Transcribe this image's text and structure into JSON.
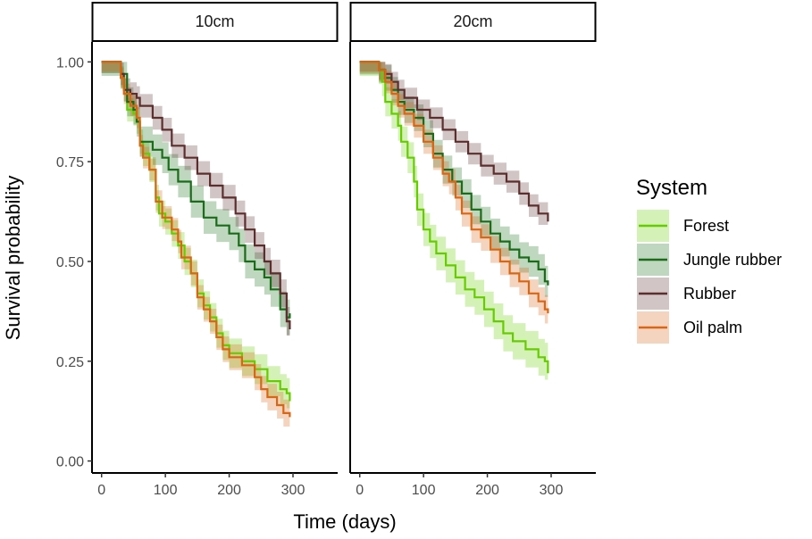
{
  "chart_data": {
    "type": "line",
    "subtype": "kaplan-meier survival curves with confidence bands",
    "xlabel": "Time (days)",
    "ylabel": "Survival probability",
    "xlim": [
      -15,
      370
    ],
    "ylim": [
      -0.03,
      1.05
    ],
    "x_ticks": [
      0,
      100,
      200,
      300
    ],
    "x_tick_labels": [
      "0",
      "100",
      "200",
      "300"
    ],
    "y_ticks": [
      0.0,
      0.25,
      0.5,
      0.75,
      1.0
    ],
    "y_tick_labels": [
      "0.00",
      "0.25",
      "0.50",
      "0.75",
      "1.00"
    ],
    "grid": false,
    "legend_position": "right",
    "legend": {
      "title": "System",
      "entries": [
        "Forest",
        "Jungle rubber",
        "Rubber",
        "Oil palm"
      ]
    },
    "colors": {
      "Forest": "#66cc00",
      "Jungle rubber": "#1a6b1a",
      "Rubber": "#5c2e2e",
      "Oil palm": "#d96614"
    },
    "panels": [
      {
        "strip": "10cm",
        "series": [
          {
            "name": "Forest",
            "points": [
              [
                0,
                1.0
              ],
              [
                25,
                1.0
              ],
              [
                30,
                0.96
              ],
              [
                35,
                0.93
              ],
              [
                40,
                0.88
              ],
              [
                50,
                0.87
              ],
              [
                55,
                0.85
              ],
              [
                60,
                0.8
              ],
              [
                65,
                0.77
              ],
              [
                75,
                0.73
              ],
              [
                85,
                0.66
              ],
              [
                90,
                0.62
              ],
              [
                100,
                0.6
              ],
              [
                110,
                0.57
              ],
              [
                120,
                0.54
              ],
              [
                130,
                0.5
              ],
              [
                140,
                0.47
              ],
              [
                150,
                0.42
              ],
              [
                160,
                0.39
              ],
              [
                170,
                0.36
              ],
              [
                180,
                0.32
              ],
              [
                190,
                0.29
              ],
              [
                200,
                0.27
              ],
              [
                220,
                0.25
              ],
              [
                240,
                0.23
              ],
              [
                260,
                0.2
              ],
              [
                280,
                0.18
              ],
              [
                290,
                0.17
              ],
              [
                295,
                0.15
              ]
            ],
            "band": 0.04
          },
          {
            "name": "Jungle rubber",
            "points": [
              [
                0,
                1.0
              ],
              [
                25,
                1.0
              ],
              [
                30,
                0.97
              ],
              [
                40,
                0.9
              ],
              [
                50,
                0.88
              ],
              [
                55,
                0.85
              ],
              [
                60,
                0.8
              ],
              [
                80,
                0.78
              ],
              [
                95,
                0.76
              ],
              [
                105,
                0.73
              ],
              [
                120,
                0.7
              ],
              [
                140,
                0.65
              ],
              [
                160,
                0.61
              ],
              [
                180,
                0.59
              ],
              [
                200,
                0.57
              ],
              [
                215,
                0.54
              ],
              [
                225,
                0.5
              ],
              [
                240,
                0.48
              ],
              [
                255,
                0.46
              ],
              [
                265,
                0.43
              ],
              [
                280,
                0.38
              ],
              [
                290,
                0.36
              ],
              [
                295,
                0.37
              ]
            ],
            "band": 0.05
          },
          {
            "name": "Rubber",
            "points": [
              [
                0,
                1.0
              ],
              [
                25,
                1.0
              ],
              [
                30,
                0.97
              ],
              [
                35,
                0.93
              ],
              [
                45,
                0.92
              ],
              [
                55,
                0.91
              ],
              [
                60,
                0.89
              ],
              [
                80,
                0.86
              ],
              [
                95,
                0.83
              ],
              [
                110,
                0.79
              ],
              [
                130,
                0.76
              ],
              [
                150,
                0.72
              ],
              [
                170,
                0.69
              ],
              [
                190,
                0.66
              ],
              [
                210,
                0.62
              ],
              [
                225,
                0.58
              ],
              [
                240,
                0.54
              ],
              [
                255,
                0.5
              ],
              [
                265,
                0.47
              ],
              [
                280,
                0.42
              ],
              [
                290,
                0.35
              ],
              [
                295,
                0.33
              ]
            ],
            "band": 0.04
          },
          {
            "name": "Oil palm",
            "points": [
              [
                0,
                1.0
              ],
              [
                25,
                1.0
              ],
              [
                30,
                0.96
              ],
              [
                35,
                0.92
              ],
              [
                45,
                0.89
              ],
              [
                55,
                0.86
              ],
              [
                60,
                0.79
              ],
              [
                65,
                0.76
              ],
              [
                75,
                0.73
              ],
              [
                85,
                0.65
              ],
              [
                95,
                0.61
              ],
              [
                110,
                0.58
              ],
              [
                120,
                0.55
              ],
              [
                125,
                0.51
              ],
              [
                140,
                0.47
              ],
              [
                150,
                0.41
              ],
              [
                160,
                0.38
              ],
              [
                170,
                0.35
              ],
              [
                180,
                0.31
              ],
              [
                190,
                0.28
              ],
              [
                200,
                0.26
              ],
              [
                220,
                0.24
              ],
              [
                240,
                0.21
              ],
              [
                250,
                0.18
              ],
              [
                260,
                0.16
              ],
              [
                275,
                0.14
              ],
              [
                285,
                0.12
              ],
              [
                295,
                0.11
              ]
            ],
            "band": 0.035
          }
        ]
      },
      {
        "strip": "20cm",
        "series": [
          {
            "name": "Forest",
            "points": [
              [
                0,
                1.0
              ],
              [
                25,
                1.0
              ],
              [
                30,
                0.98
              ],
              [
                35,
                0.95
              ],
              [
                40,
                0.9
              ],
              [
                50,
                0.87
              ],
              [
                60,
                0.84
              ],
              [
                65,
                0.8
              ],
              [
                75,
                0.76
              ],
              [
                85,
                0.7
              ],
              [
                90,
                0.63
              ],
              [
                100,
                0.58
              ],
              [
                110,
                0.55
              ],
              [
                120,
                0.52
              ],
              [
                135,
                0.49
              ],
              [
                150,
                0.46
              ],
              [
                165,
                0.43
              ],
              [
                180,
                0.41
              ],
              [
                195,
                0.38
              ],
              [
                210,
                0.35
              ],
              [
                225,
                0.32
              ],
              [
                240,
                0.3
              ],
              [
                260,
                0.28
              ],
              [
                280,
                0.26
              ],
              [
                290,
                0.25
              ],
              [
                295,
                0.22
              ]
            ],
            "band": 0.05
          },
          {
            "name": "Jungle rubber",
            "points": [
              [
                0,
                1.0
              ],
              [
                25,
                1.0
              ],
              [
                30,
                0.98
              ],
              [
                40,
                0.96
              ],
              [
                50,
                0.93
              ],
              [
                60,
                0.9
              ],
              [
                70,
                0.88
              ],
              [
                85,
                0.86
              ],
              [
                100,
                0.82
              ],
              [
                115,
                0.77
              ],
              [
                130,
                0.73
              ],
              [
                145,
                0.7
              ],
              [
                160,
                0.67
              ],
              [
                175,
                0.63
              ],
              [
                190,
                0.6
              ],
              [
                205,
                0.57
              ],
              [
                220,
                0.55
              ],
              [
                235,
                0.53
              ],
              [
                250,
                0.51
              ],
              [
                265,
                0.5
              ],
              [
                280,
                0.48
              ],
              [
                290,
                0.45
              ],
              [
                295,
                0.44
              ]
            ],
            "band": 0.045
          },
          {
            "name": "Rubber",
            "points": [
              [
                0,
                1.0
              ],
              [
                25,
                1.0
              ],
              [
                30,
                0.98
              ],
              [
                40,
                0.97
              ],
              [
                50,
                0.95
              ],
              [
                60,
                0.93
              ],
              [
                70,
                0.91
              ],
              [
                90,
                0.88
              ],
              [
                110,
                0.86
              ],
              [
                130,
                0.83
              ],
              [
                150,
                0.8
              ],
              [
                170,
                0.77
              ],
              [
                190,
                0.74
              ],
              [
                210,
                0.72
              ],
              [
                230,
                0.7
              ],
              [
                250,
                0.67
              ],
              [
                265,
                0.64
              ],
              [
                280,
                0.62
              ],
              [
                295,
                0.6
              ]
            ],
            "band": 0.035
          },
          {
            "name": "Oil palm",
            "points": [
              [
                0,
                1.0
              ],
              [
                25,
                1.0
              ],
              [
                30,
                0.98
              ],
              [
                40,
                0.95
              ],
              [
                50,
                0.92
              ],
              [
                60,
                0.89
              ],
              [
                70,
                0.87
              ],
              [
                85,
                0.84
              ],
              [
                100,
                0.8
              ],
              [
                115,
                0.76
              ],
              [
                130,
                0.72
              ],
              [
                140,
                0.7
              ],
              [
                150,
                0.66
              ],
              [
                160,
                0.62
              ],
              [
                175,
                0.58
              ],
              [
                190,
                0.56
              ],
              [
                205,
                0.53
              ],
              [
                220,
                0.5
              ],
              [
                235,
                0.47
              ],
              [
                250,
                0.45
              ],
              [
                265,
                0.42
              ],
              [
                280,
                0.4
              ],
              [
                290,
                0.38
              ],
              [
                295,
                0.37
              ]
            ],
            "band": 0.04
          }
        ]
      }
    ]
  }
}
